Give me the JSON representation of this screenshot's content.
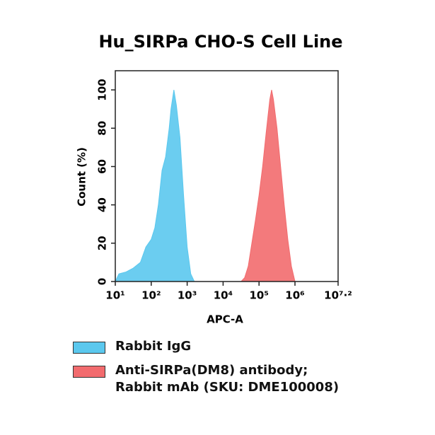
{
  "chart_data": {
    "type": "area",
    "title": "Hu_SIRPa CHO-S Cell Line",
    "x_label": "APC-A",
    "y_label": "Count  (%)",
    "xscale": "log",
    "xlim": [
      10,
      15848932
    ],
    "xticks": [
      {
        "value": 10,
        "label": "10¹"
      },
      {
        "value": 100,
        "label": "10²"
      },
      {
        "value": 1000,
        "label": "10³"
      },
      {
        "value": 10000,
        "label": "10⁴"
      },
      {
        "value": 100000,
        "label": "10⁵"
      },
      {
        "value": 1000000,
        "label": "10⁶"
      },
      {
        "value": 15848932,
        "label": "10⁷·²"
      }
    ],
    "ylim": [
      0,
      110
    ],
    "yticks": [
      0,
      20,
      40,
      60,
      80,
      100
    ],
    "series": [
      {
        "name": "Rabbit IgG",
        "color": "#5bc8ee",
        "x": [
          10,
          12.6,
          20,
          31.6,
          50,
          71,
          100,
          126,
          158,
          200,
          251,
          316,
          355,
          427,
          501,
          631,
          794,
          1000,
          1259,
          1585
        ],
        "values": [
          0,
          4,
          5,
          7,
          10,
          18,
          22,
          28,
          40,
          58,
          65,
          80,
          90,
          100,
          92,
          75,
          45,
          18,
          4,
          0
        ]
      },
      {
        "name": "Anti-SIRPa(DM8) antibody; Rabbit mAb (SKU: DME100008)",
        "color": "#f26b6e",
        "x": [
          31623,
          39811,
          50119,
          63096,
          79433,
          100000,
          125893,
          158489,
          199526,
          223872,
          251189,
          316228,
          398107,
          501187,
          630957,
          794328,
          1000000
        ],
        "values": [
          0,
          2,
          8,
          20,
          32,
          45,
          60,
          78,
          95,
          100,
          95,
          80,
          60,
          40,
          22,
          8,
          0
        ]
      }
    ]
  }
}
